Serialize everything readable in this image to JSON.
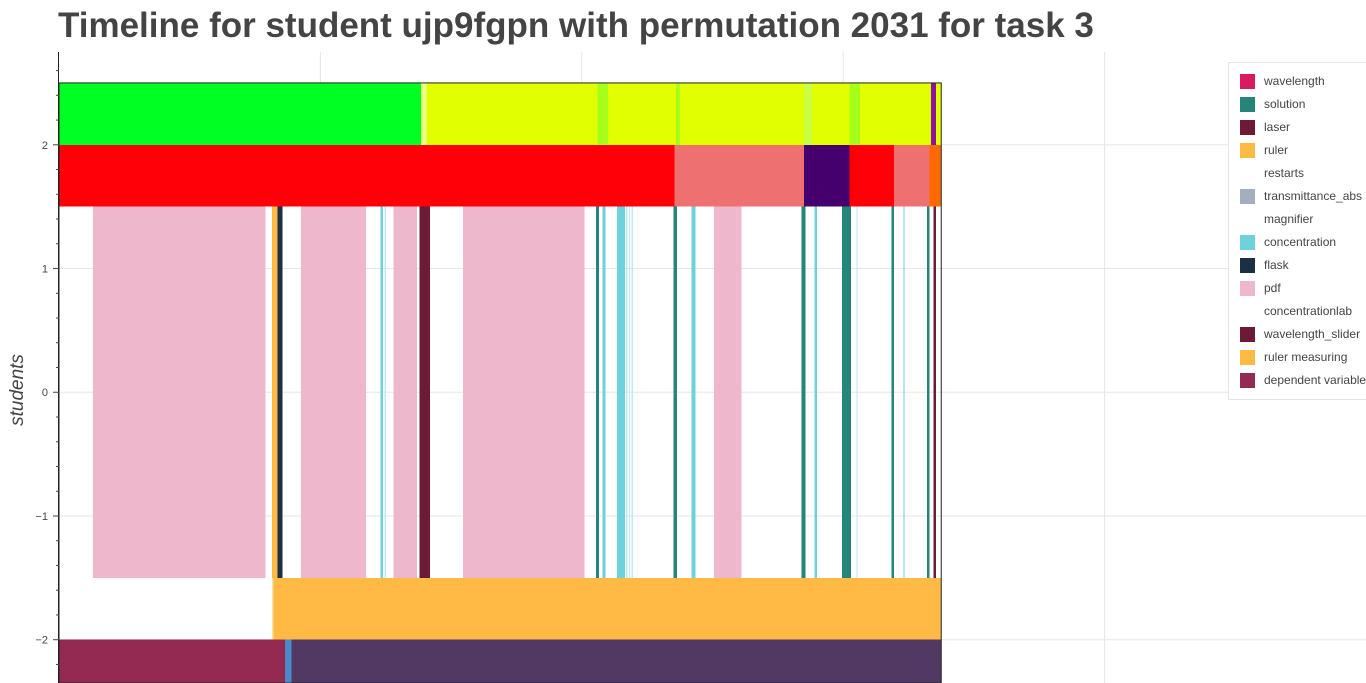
{
  "title": "Timeline for student ujp9fgpn with permutation 2031 for task 3",
  "chart_data": {
    "type": "timeline",
    "title": "Timeline for student ujp9fgpn with permutation 2031 for task 3",
    "ylabel": "students",
    "xlabel": "",
    "ylim": [
      -2.35,
      2.75
    ],
    "y_ticks": [
      {
        "value": 2,
        "label": "2"
      },
      {
        "value": 1,
        "label": "1"
      },
      {
        "value": 0,
        "label": "0"
      },
      {
        "value": -1,
        "label": "−1"
      },
      {
        "value": -2,
        "label": "−2"
      }
    ],
    "x_range": [
      0,
      1000
    ],
    "x_grid": [
      200,
      400,
      600,
      800
    ],
    "plot_end": 675,
    "grid": true,
    "legend_position": "right",
    "legend": [
      {
        "label": "wavelength",
        "color": "#D81B60"
      },
      {
        "label": "solution",
        "color": "#26847B"
      },
      {
        "label": "laser",
        "color": "#6D1A36"
      },
      {
        "label": "ruler",
        "color": "#FFB945"
      },
      {
        "label": "restarts",
        "color": ""
      },
      {
        "label": "transmittance_abs",
        "color": "#A3AEBF"
      },
      {
        "label": "magnifier",
        "color": ""
      },
      {
        "label": "concentration",
        "color": "#6ED2DC"
      },
      {
        "label": "flask",
        "color": "#1B2F45"
      },
      {
        "label": "pdf",
        "color": "#EFB7CB"
      },
      {
        "label": "concentrationlab",
        "color": ""
      },
      {
        "label": "wavelength_slider",
        "color": "#6D1A36"
      },
      {
        "label": "ruler measuring",
        "color": "#FFB945"
      },
      {
        "label": "dependent variable",
        "color": "#942A52"
      }
    ],
    "rows": [
      {
        "name": "top-state",
        "y0": 2.0,
        "y1": 2.5,
        "segments": [
          {
            "x0": 0,
            "x1": 277,
            "color": "#00FF22"
          },
          {
            "x0": 277,
            "x1": 278,
            "color": "#E8FF60"
          },
          {
            "x0": 278,
            "x1": 281,
            "color": "#ECFF8A"
          },
          {
            "x0": 281,
            "x1": 412,
            "color": "#E2FF00"
          },
          {
            "x0": 412,
            "x1": 420,
            "color": "#A5FF1A"
          },
          {
            "x0": 420,
            "x1": 472,
            "color": "#E2FF00"
          },
          {
            "x0": 472,
            "x1": 475,
            "color": "#A5FF1A"
          },
          {
            "x0": 475,
            "x1": 570,
            "color": "#E2FF00"
          },
          {
            "x0": 570,
            "x1": 576,
            "color": "#C8FF40"
          },
          {
            "x0": 576,
            "x1": 605,
            "color": "#E2FF00"
          },
          {
            "x0": 605,
            "x1": 613,
            "color": "#A5FF1A"
          },
          {
            "x0": 613,
            "x1": 667,
            "color": "#E2FF00"
          },
          {
            "x0": 667,
            "x1": 671,
            "color": "#8A14A0"
          },
          {
            "x0": 671,
            "x1": 675,
            "color": "#E2FF00"
          }
        ]
      },
      {
        "name": "mid-state",
        "y0": 1.5,
        "y1": 2.0,
        "segments": [
          {
            "x0": 0,
            "x1": 471,
            "color": "#FF0008"
          },
          {
            "x0": 471,
            "x1": 570,
            "color": "#EE7070"
          },
          {
            "x0": 570,
            "x1": 605,
            "color": "#46006E"
          },
          {
            "x0": 605,
            "x1": 639,
            "color": "#FF0008"
          },
          {
            "x0": 639,
            "x1": 666,
            "color": "#EE7070"
          },
          {
            "x0": 666,
            "x1": 675,
            "color": "#FF6A00"
          }
        ]
      },
      {
        "name": "actions",
        "y0": -1.5,
        "y1": 1.5,
        "segments": [
          {
            "x0": 26,
            "x1": 158,
            "color": "#EFB7CB"
          },
          {
            "x0": 163,
            "x1": 167,
            "color": "#FFB945"
          },
          {
            "x0": 167,
            "x1": 171,
            "color": "#1B2F45"
          },
          {
            "x0": 185,
            "x1": 235,
            "color": "#EFB7CB"
          },
          {
            "x0": 246,
            "x1": 248,
            "color": "#6ED2DC"
          },
          {
            "x0": 249,
            "x1": 250,
            "color": "#BCEAF0"
          },
          {
            "x0": 256,
            "x1": 274,
            "color": "#EFB7CB"
          },
          {
            "x0": 276,
            "x1": 284,
            "color": "#6D1A36"
          },
          {
            "x0": 309,
            "x1": 402,
            "color": "#EFB7CB"
          },
          {
            "x0": 411,
            "x1": 413,
            "color": "#26847B"
          },
          {
            "x0": 416,
            "x1": 418,
            "color": "#6ED2DC"
          },
          {
            "x0": 427,
            "x1": 433,
            "color": "#6ED2DC"
          },
          {
            "x0": 434,
            "x1": 435,
            "color": "#BCEAF0"
          },
          {
            "x0": 436,
            "x1": 437,
            "color": "#BCEAF0"
          },
          {
            "x0": 438,
            "x1": 439,
            "color": "#BCEAF0"
          },
          {
            "x0": 470,
            "x1": 473,
            "color": "#26847B"
          },
          {
            "x0": 484,
            "x1": 487,
            "color": "#6ED2DC"
          },
          {
            "x0": 501,
            "x1": 522,
            "color": "#EFB7CB"
          },
          {
            "x0": 568,
            "x1": 571,
            "color": "#26847B"
          },
          {
            "x0": 578,
            "x1": 580,
            "color": "#6ED2DC"
          },
          {
            "x0": 599,
            "x1": 606,
            "color": "#26847B"
          },
          {
            "x0": 610,
            "x1": 611,
            "color": "#BCEAF0"
          },
          {
            "x0": 637,
            "x1": 639,
            "color": "#26847B"
          },
          {
            "x0": 646,
            "x1": 647,
            "color": "#6ED2DC"
          },
          {
            "x0": 664,
            "x1": 666,
            "color": "#26847B"
          },
          {
            "x0": 669,
            "x1": 671,
            "color": "#6D1A36"
          }
        ]
      },
      {
        "name": "ruler-state",
        "y0": -2.0,
        "y1": -1.5,
        "segments": [
          {
            "x0": 163,
            "x1": 164,
            "color": "#FFE0A0"
          },
          {
            "x0": 164,
            "x1": 675,
            "color": "#FFB945"
          }
        ]
      },
      {
        "name": "dependent-variable",
        "y0": -2.35,
        "y1": -2.0,
        "segments": [
          {
            "x0": 0,
            "x1": 173,
            "color": "#942A52"
          },
          {
            "x0": 173,
            "x1": 178,
            "color": "#4A8AC8"
          },
          {
            "x0": 178,
            "x1": 675,
            "color": "#513963"
          }
        ]
      }
    ]
  }
}
